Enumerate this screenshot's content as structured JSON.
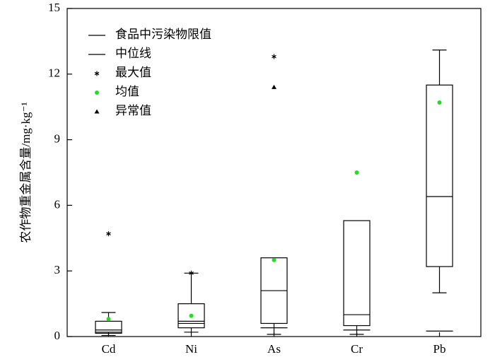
{
  "chart_data": {
    "type": "box",
    "y_label": "农作物重金属含量/mg·kg⁻¹",
    "categories": [
      "Cd",
      "Ni",
      "As",
      "Cr",
      "Pb"
    ],
    "boxes": [
      {
        "whisker_low": 0.05,
        "q1": 0.15,
        "median": 0.3,
        "q3": 0.7,
        "whisker_high": 1.1,
        "mean": 0.8,
        "limit": 0.2,
        "max": 4.7,
        "outliers": []
      },
      {
        "whisker_low": 0.2,
        "q1": 0.4,
        "median": 0.6,
        "q3": 1.5,
        "whisker_high": 2.9,
        "mean": 0.95,
        "limit": 0.7,
        "max": 2.9,
        "outliers": []
      },
      {
        "whisker_low": 0.1,
        "q1": 0.6,
        "median": 2.1,
        "q3": 3.6,
        "whisker_high": null,
        "mean": 3.5,
        "limit": 0.4,
        "max": 12.8,
        "outliers": [
          11.4
        ]
      },
      {
        "whisker_low": 0.1,
        "q1": 0.5,
        "median": 1.0,
        "q3": 5.3,
        "whisker_high": null,
        "mean": 7.5,
        "limit": 0.3,
        "max": null,
        "outliers": []
      },
      {
        "whisker_low": 2.0,
        "q1": 3.2,
        "median": 6.4,
        "q3": 11.5,
        "whisker_high": 13.1,
        "mean": 10.7,
        "limit": 0.25,
        "max": null,
        "outliers": []
      }
    ],
    "legend_labels": [
      "食品中污染物限值",
      "中位线",
      "最大值",
      "均值",
      "异常值"
    ],
    "limit_color": "#e03010",
    "mean_color": "#22dd22",
    "box_color": "#000000",
    "ylim": [
      0,
      15
    ],
    "yticks": [
      0,
      3,
      6,
      9,
      12,
      15
    ],
    "grid": false
  }
}
